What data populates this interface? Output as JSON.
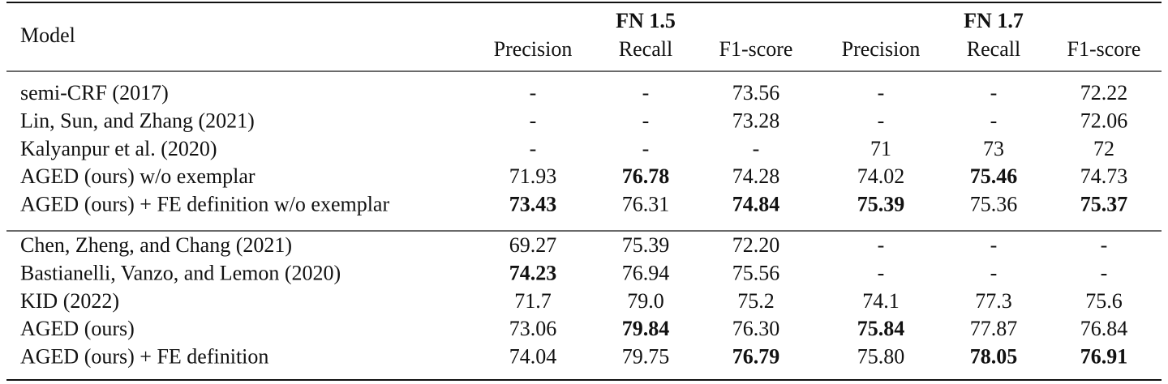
{
  "table": {
    "header": {
      "model": "Model",
      "groups": [
        {
          "title": "FN 1.5",
          "columns": [
            "Precision",
            "Recall",
            "F1-score"
          ]
        },
        {
          "title": "FN 1.7",
          "columns": [
            "Precision",
            "Recall",
            "F1-score"
          ]
        }
      ]
    },
    "sections": [
      {
        "rows": [
          {
            "model": "semi-CRF (2017)",
            "cells": [
              "-",
              "-",
              "73.56",
              "-",
              "-",
              "72.22"
            ],
            "bold": [
              false,
              false,
              false,
              false,
              false,
              false
            ]
          },
          {
            "model": "Lin, Sun, and Zhang (2021)",
            "cells": [
              "-",
              "-",
              "73.28",
              "-",
              "-",
              "72.06"
            ],
            "bold": [
              false,
              false,
              false,
              false,
              false,
              false
            ]
          },
          {
            "model": "Kalyanpur et al. (2020)",
            "cells": [
              "-",
              "-",
              "-",
              "71",
              "73",
              "72"
            ],
            "bold": [
              false,
              false,
              false,
              false,
              false,
              false
            ]
          },
          {
            "model": "AGED (ours) w/o exemplar",
            "cells": [
              "71.93",
              "76.78",
              "74.28",
              "74.02",
              "75.46",
              "74.73"
            ],
            "bold": [
              false,
              true,
              false,
              false,
              true,
              false
            ]
          },
          {
            "model": "AGED (ours) + FE definition w/o exemplar",
            "cells": [
              "73.43",
              "76.31",
              "74.84",
              "75.39",
              "75.36",
              "75.37"
            ],
            "bold": [
              true,
              false,
              true,
              true,
              false,
              true
            ]
          }
        ]
      },
      {
        "rows": [
          {
            "model": "Chen, Zheng, and Chang (2021)",
            "cells": [
              "69.27",
              "75.39",
              "72.20",
              "-",
              "-",
              "-"
            ],
            "bold": [
              false,
              false,
              false,
              false,
              false,
              false
            ]
          },
          {
            "model": "Bastianelli, Vanzo, and Lemon (2020)",
            "cells": [
              "74.23",
              "76.94",
              "75.56",
              "-",
              "-",
              "-"
            ],
            "bold": [
              true,
              false,
              false,
              false,
              false,
              false
            ]
          },
          {
            "model": "KID (2022)",
            "cells": [
              "71.7",
              "79.0",
              "75.2",
              "74.1",
              "77.3",
              "75.6"
            ],
            "bold": [
              false,
              false,
              false,
              false,
              false,
              false
            ]
          },
          {
            "model": "AGED (ours)",
            "cells": [
              "73.06",
              "79.84",
              "76.30",
              "75.84",
              "77.87",
              "76.84"
            ],
            "bold": [
              false,
              true,
              false,
              true,
              false,
              false
            ]
          },
          {
            "model": "AGED (ours) + FE definition",
            "cells": [
              "74.04",
              "79.75",
              "76.79",
              "75.80",
              "78.05",
              "76.91"
            ],
            "bold": [
              false,
              false,
              true,
              false,
              true,
              true
            ]
          }
        ]
      }
    ]
  }
}
